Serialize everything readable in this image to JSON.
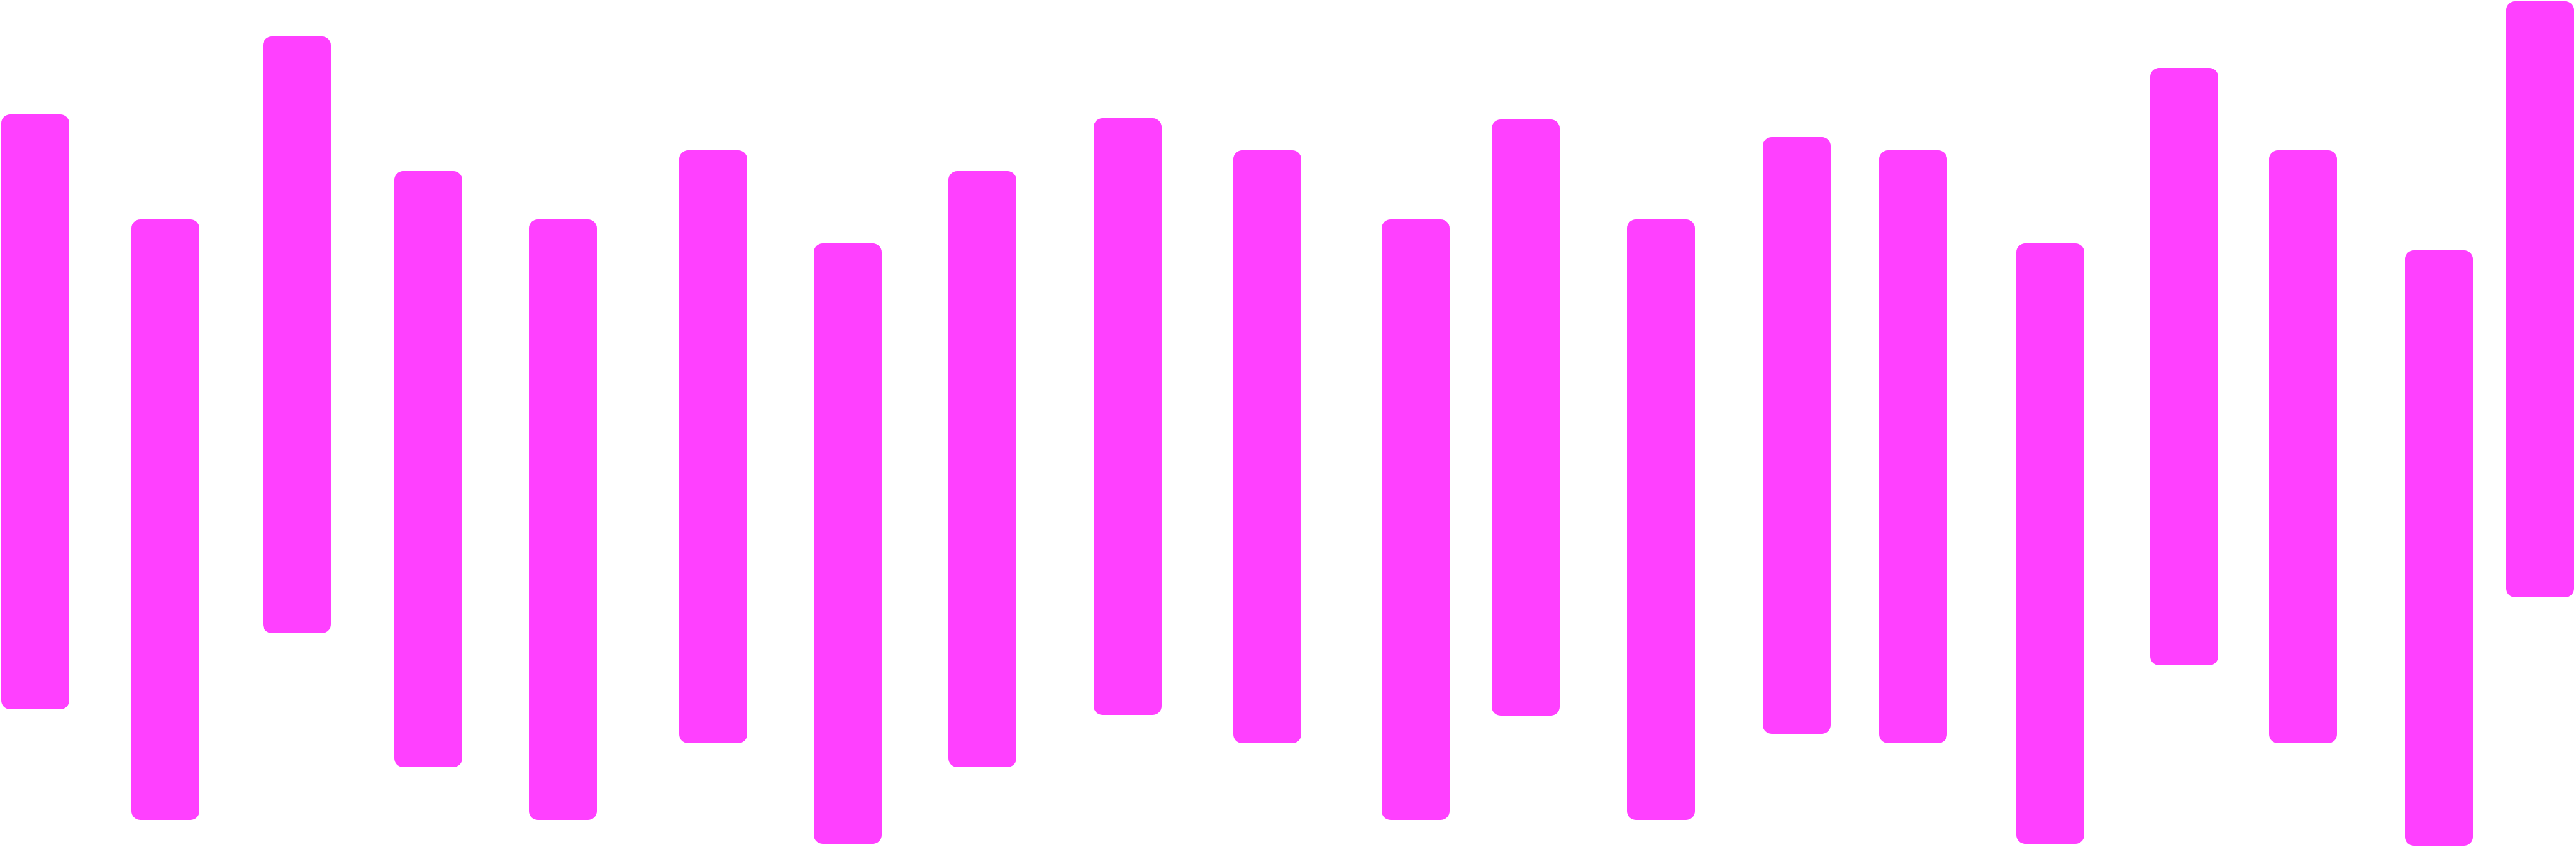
{
  "waveform": {
    "bar_color": "#FF40FF",
    "background": "#FFFFFF",
    "bar_count": 20
  }
}
